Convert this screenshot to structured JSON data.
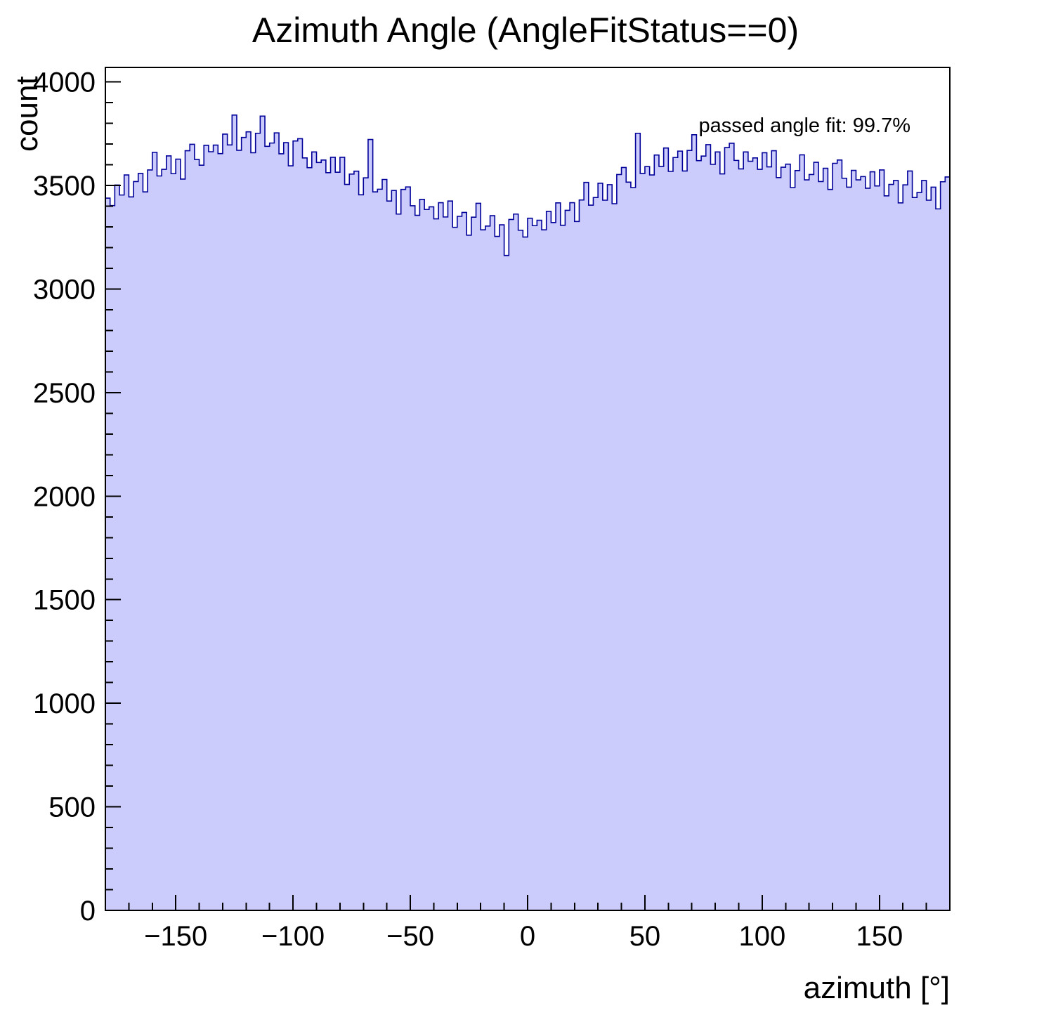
{
  "page": {
    "background": "#ffffff"
  },
  "chart_data": {
    "type": "bar",
    "chart_style": "root-histogram",
    "title": "Azimuth Angle (AngleFitStatus==0)",
    "xlabel": "azimuth [°]",
    "ylabel": "count",
    "annotation": "passed angle fit: 99.7%",
    "xlim": [
      -180,
      180
    ],
    "ylim": [
      0,
      4070
    ],
    "x_bin_start": -180,
    "bin_width": 2,
    "x_major_ticks": [
      -150,
      -100,
      -50,
      0,
      50,
      100,
      150
    ],
    "x_major_tick_labels": [
      "−150",
      "−100",
      "−50",
      "0",
      "50",
      "100",
      "150"
    ],
    "x_minor_tick_step": 10,
    "y_major_ticks": [
      0,
      500,
      1000,
      1500,
      2000,
      2500,
      3000,
      3500,
      4000
    ],
    "y_major_tick_labels": [
      "0",
      "500",
      "1000",
      "1500",
      "2000",
      "2500",
      "3000",
      "3500",
      "4000"
    ],
    "y_minor_tick_step": 100,
    "grid": false,
    "legend": false,
    "fill_color": "#ccccfc",
    "line_color": "#000099",
    "axis_color": "#000000",
    "values": [
      3439,
      3403,
      3502,
      3454,
      3551,
      3445,
      3519,
      3558,
      3469,
      3575,
      3660,
      3546,
      3578,
      3643,
      3557,
      3627,
      3531,
      3668,
      3699,
      3626,
      3598,
      3694,
      3663,
      3695,
      3654,
      3748,
      3696,
      3840,
      3670,
      3732,
      3759,
      3658,
      3752,
      3835,
      3689,
      3705,
      3754,
      3653,
      3707,
      3595,
      3715,
      3726,
      3633,
      3586,
      3662,
      3611,
      3623,
      3562,
      3636,
      3564,
      3636,
      3505,
      3555,
      3569,
      3455,
      3537,
      3722,
      3469,
      3482,
      3529,
      3425,
      3476,
      3362,
      3481,
      3493,
      3402,
      3356,
      3433,
      3384,
      3397,
      3339,
      3417,
      3348,
      3425,
      3298,
      3351,
      3370,
      3260,
      3347,
      3414,
      3286,
      3304,
      3354,
      3254,
      3310,
      3162,
      3336,
      3362,
      3284,
      3251,
      3342,
      3306,
      3332,
      3286,
      3375,
      3321,
      3416,
      3308,
      3380,
      3417,
      3326,
      3430,
      3515,
      3405,
      3442,
      3511,
      3429,
      3504,
      3412,
      3553,
      3587,
      3516,
      3490,
      3752,
      3558,
      3591,
      3551,
      3647,
      3592,
      3681,
      3568,
      3635,
      3666,
      3570,
      3669,
      3745,
      3620,
      3642,
      3697,
      3602,
      3662,
      3556,
      3683,
      3704,
      3621,
      3580,
      3662,
      3617,
      3633,
      3578,
      3658,
      3590,
      3668,
      3538,
      3588,
      3603,
      3490,
      3572,
      3648,
      3527,
      3553,
      3612,
      3519,
      3583,
      3481,
      3607,
      3623,
      3535,
      3492,
      3573,
      3527,
      3543,
      3487,
      3566,
      3498,
      3575,
      3450,
      3505,
      3524,
      3416,
      3503,
      3570,
      3442,
      3466,
      3524,
      3429,
      3492,
      3387,
      3518,
      3541
    ]
  }
}
